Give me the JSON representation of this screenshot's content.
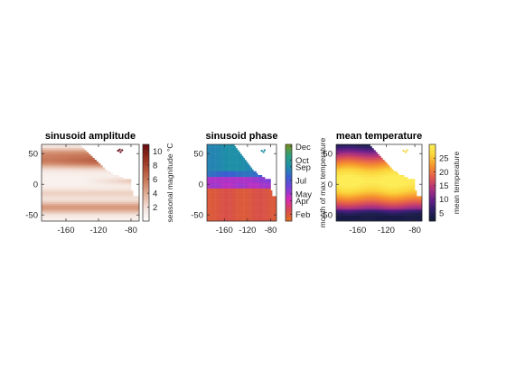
{
  "chart_data": [
    {
      "type": "heatmap",
      "title": "sinusoid amplitude",
      "xlabel": "",
      "ylabel": "",
      "xticks": [
        -160,
        -120,
        -80
      ],
      "yticks": [
        -50,
        0,
        50
      ],
      "xlim": [
        -190,
        -70
      ],
      "ylim": [
        -60,
        65
      ],
      "colormap": [
        "#ffffff",
        "#f3e2da",
        "#e3b59f",
        "#cd8263",
        "#b4543a",
        "#8f2a1b",
        "#650a10"
      ],
      "colorbar": {
        "label": "seasonal magnitude °C",
        "ticks": [
          2,
          4,
          6,
          8,
          10
        ],
        "range": [
          0,
          11
        ]
      },
      "pattern": "high amplitude in northern mid-latitudes and southern band near 40S, low near equator"
    },
    {
      "type": "heatmap",
      "title": "sinusoid phase",
      "xlabel": "",
      "ylabel": "",
      "xticks": [
        -160,
        -120,
        -80
      ],
      "yticks": [
        -50,
        0,
        50
      ],
      "xlim": [
        -190,
        -70
      ],
      "ylim": [
        -60,
        65
      ],
      "colormap": [
        "#e07020",
        "#d84a50",
        "#d62ab8",
        "#7a40d8",
        "#3a60d0",
        "#1e8fa8",
        "#2e9e7e",
        "#7a9018"
      ],
      "colorbar": {
        "label": "month of max temperature",
        "ticks": [
          "Feb",
          "Apr",
          "May",
          "Jul",
          "Sep",
          "Oct",
          "Dec"
        ],
        "range": [
          1,
          12.3
        ]
      },
      "pattern": "southern hemisphere peaks Feb-Mar (red), equatorial band May (magenta), northern hemisphere Sep (teal)"
    },
    {
      "type": "heatmap",
      "title": "mean temperature",
      "xlabel": "",
      "ylabel": "",
      "xticks": [
        -160,
        -120,
        -80
      ],
      "yticks": [
        -50,
        0,
        50
      ],
      "xlim": [
        -190,
        -70
      ],
      "ylim": [
        -60,
        65
      ],
      "colormap": [
        "#0d1a33",
        "#2a1e66",
        "#6a1f8a",
        "#b2317c",
        "#e25a4e",
        "#f6912c",
        "#fbd33a",
        "#fdf05a"
      ],
      "colorbar": {
        "label": "mean temperature",
        "ticks": [
          5,
          10,
          15,
          20,
          25
        ],
        "range": [
          2,
          30
        ]
      },
      "pattern": "warm (~28) in the tropics, cooling toward both poles"
    }
  ]
}
